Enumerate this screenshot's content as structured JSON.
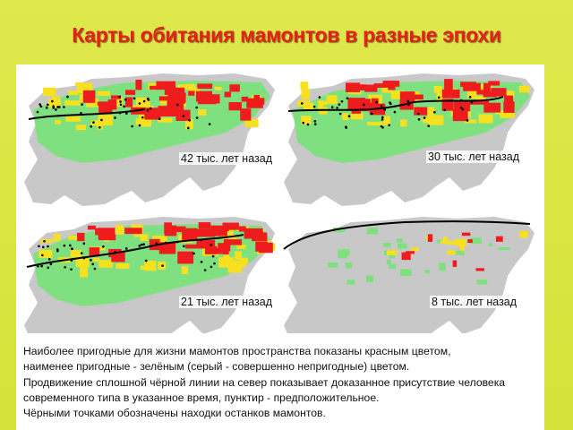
{
  "title": "Карты обитания мамонтов в разные эпохи",
  "maps": [
    {
      "label": "42 тыс. лет назад"
    },
    {
      "label": "30 тыс. лет назад"
    },
    {
      "label": "21 тыс. лет назад"
    },
    {
      "label": "8 тыс. лет назад"
    }
  ],
  "caption": [
    "Наиболее пригодные для жизни мамонтов пространства показаны красным цветом,",
    "наименее пригодные - зелёным (серый - совершенно непригодные) цветом.",
    "Продвижение сплошной чёрной линии на север показывает доказанное присутствие человека",
    "современного типа в указанное время, пунктир - предположительное.",
    "Чёрными точками обозначены находки останков мамонтов."
  ]
}
